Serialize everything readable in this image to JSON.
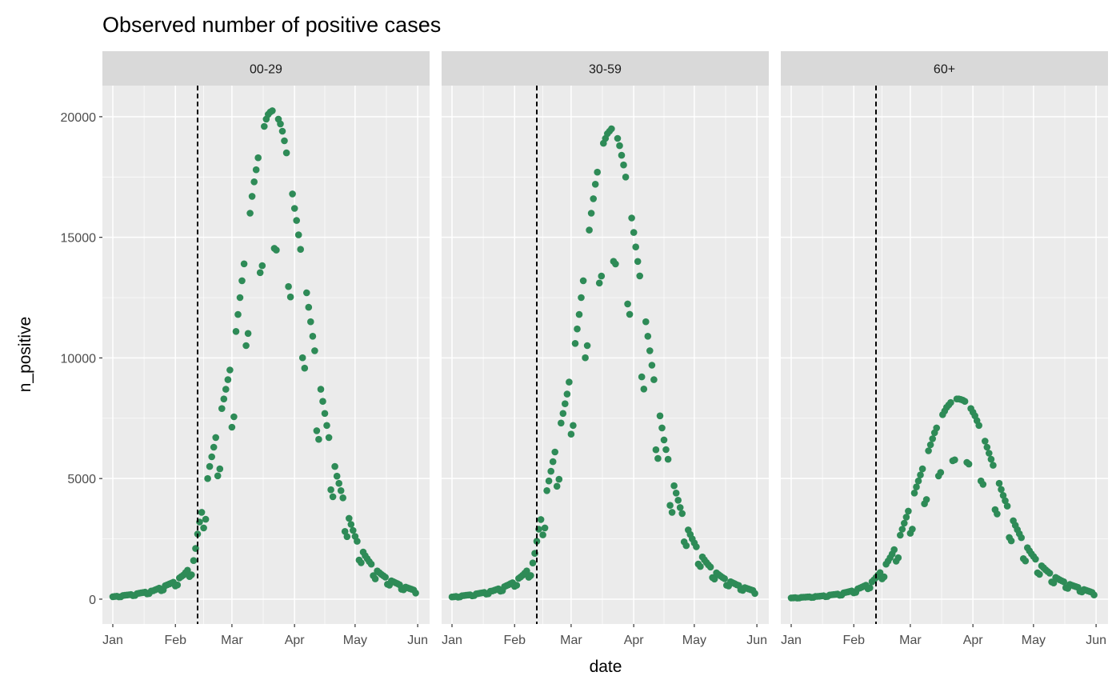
{
  "chart_data": {
    "type": "scatter",
    "title": "Observed number of positive cases",
    "xlabel": "date",
    "ylabel": "n_positive",
    "x_tick_labels": [
      "Jan",
      "Feb",
      "Mar",
      "Apr",
      "May",
      "Jun"
    ],
    "y_ticks": [
      0,
      5000,
      10000,
      15000,
      20000
    ],
    "ylim": [
      -1030,
      21290
    ],
    "grid": true,
    "point_color": "#2E8B57",
    "panel_background": "#EBEBEB",
    "strip_background": "#D9D9D9",
    "reference_line": {
      "x": "02-12",
      "style": "dashed",
      "color": "#000000"
    },
    "dates": [
      "01-01",
      "01-02",
      "01-03",
      "01-04",
      "01-05",
      "01-06",
      "01-07",
      "01-08",
      "01-09",
      "01-10",
      "01-11",
      "01-12",
      "01-13",
      "01-14",
      "01-15",
      "01-16",
      "01-17",
      "01-18",
      "01-19",
      "01-20",
      "01-21",
      "01-22",
      "01-23",
      "01-24",
      "01-25",
      "01-26",
      "01-27",
      "01-28",
      "01-29",
      "01-30",
      "01-31",
      "02-01",
      "02-02",
      "02-03",
      "02-04",
      "02-05",
      "02-06",
      "02-07",
      "02-08",
      "02-09",
      "02-10",
      "02-11",
      "02-12",
      "02-13",
      "02-14",
      "02-15",
      "02-16",
      "02-17",
      "02-18",
      "02-19",
      "02-20",
      "02-21",
      "02-22",
      "02-23",
      "02-24",
      "02-25",
      "02-26",
      "02-27",
      "02-28",
      "03-01",
      "03-02",
      "03-03",
      "03-04",
      "03-05",
      "03-06",
      "03-07",
      "03-08",
      "03-09",
      "03-10",
      "03-11",
      "03-12",
      "03-13",
      "03-14",
      "03-15",
      "03-16",
      "03-17",
      "03-18",
      "03-19",
      "03-20",
      "03-21",
      "03-22",
      "03-23",
      "03-24",
      "03-25",
      "03-26",
      "03-27",
      "03-28",
      "03-29",
      "03-30",
      "03-31",
      "04-01",
      "04-02",
      "04-03",
      "04-04",
      "04-05",
      "04-06",
      "04-07",
      "04-08",
      "04-09",
      "04-10",
      "04-11",
      "04-12",
      "04-13",
      "04-14",
      "04-15",
      "04-16",
      "04-17",
      "04-18",
      "04-19",
      "04-20",
      "04-21",
      "04-22",
      "04-23",
      "04-24",
      "04-25",
      "04-26",
      "04-27",
      "04-28",
      "04-29",
      "04-30",
      "05-01",
      "05-02",
      "05-03",
      "05-04",
      "05-05",
      "05-06",
      "05-07",
      "05-08",
      "05-09",
      "05-10",
      "05-11",
      "05-12",
      "05-13",
      "05-14",
      "05-15",
      "05-16",
      "05-17",
      "05-18",
      "05-19",
      "05-20",
      "05-21",
      "05-22",
      "05-23",
      "05-24",
      "05-25",
      "05-26",
      "05-27",
      "05-28",
      "05-29",
      "05-30",
      "05-31"
    ],
    "facets": [
      {
        "label": "00-29",
        "values": [
          100,
          110,
          120,
          94,
          101,
          150,
          160,
          170,
          180,
          190,
          144,
          155,
          230,
          245,
          260,
          275,
          290,
          220,
          230,
          335,
          350,
          385,
          420,
          455,
          353,
          378,
          560,
          595,
          630,
          665,
          700,
          547,
          590,
          880,
          940,
          1000,
          1100,
          1200,
          936,
          1008,
          1600,
          2100,
          2700,
          3200,
          3600,
          2952,
          3312,
          5000,
          5500,
          5900,
          6300,
          6700,
          5112,
          5400,
          7900,
          8300,
          8700,
          9100,
          9500,
          7128,
          7560,
          11100,
          11800,
          12500,
          13200,
          13900,
          10512,
          11016,
          16000,
          16700,
          17300,
          17800,
          18300,
          13536,
          13824,
          19600,
          19900,
          20100,
          20200,
          20250,
          14544,
          14472,
          19900,
          19700,
          19400,
          19000,
          18500,
          12960,
          12528,
          16800,
          16200,
          15700,
          15100,
          14500,
          10008,
          9576,
          12700,
          12100,
          11500,
          10900,
          10300,
          6984,
          6624,
          8700,
          8200,
          7700,
          7200,
          6700,
          4536,
          4248,
          5500,
          5100,
          4800,
          4500,
          4200,
          2808,
          2592,
          3350,
          3100,
          2850,
          2600,
          2400,
          1620,
          1512,
          1950,
          1800,
          1680,
          1560,
          1450,
          972,
          842,
          1170,
          1100,
          1030,
          970,
          910,
          619,
          583,
          760,
          720,
          680,
          640,
          600,
          410,
          389,
          500,
          470,
          440,
          410,
          380,
          252
        ]
      },
      {
        "label": "30-59",
        "values": [
          90,
          100,
          110,
          86,
          94,
          140,
          150,
          160,
          170,
          180,
          137,
          148,
          220,
          235,
          250,
          265,
          280,
          212,
          223,
          325,
          340,
          370,
          400,
          430,
          331,
          353,
          520,
          560,
          600,
          640,
          680,
          533,
          576,
          860,
          920,
          990,
          1080,
          1170,
          907,
          979,
          1500,
          1900,
          2400,
          2900,
          3300,
          2664,
          2952,
          4500,
          4900,
          5300,
          5700,
          6100,
          4680,
          4968,
          7300,
          7700,
          8100,
          8500,
          9000,
          6840,
          7200,
          10600,
          11200,
          11800,
          12500,
          13200,
          10008,
          10512,
          15300,
          16000,
          16600,
          17200,
          17700,
          13104,
          13392,
          18900,
          19100,
          19300,
          19400,
          19500,
          14004,
          13896,
          19100,
          18800,
          18400,
          18000,
          17500,
          12240,
          11808,
          15800,
          15200,
          14600,
          14000,
          13400,
          9216,
          8712,
          11500,
          10900,
          10300,
          9700,
          9100,
          6192,
          5832,
          7600,
          7100,
          6600,
          6200,
          5800,
          3888,
          3600,
          4700,
          4400,
          4100,
          3800,
          3550,
          2376,
          2218,
          2870,
          2680,
          2500,
          2330,
          2170,
          1454,
          1354,
          1750,
          1630,
          1520,
          1420,
          1330,
          893,
          835,
          1090,
          1020,
          960,
          900,
          850,
          576,
          547,
          720,
          680,
          640,
          600,
          570,
          389,
          367,
          480,
          450,
          420,
          390,
          360,
          238
        ]
      },
      {
        "label": "60+",
        "values": [
          50,
          55,
          60,
          46,
          49,
          75,
          80,
          85,
          90,
          95,
          70,
          74,
          110,
          115,
          120,
          130,
          140,
          105,
          112,
          170,
          180,
          190,
          200,
          215,
          161,
          172,
          260,
          280,
          300,
          320,
          340,
          259,
          280,
          430,
          460,
          500,
          540,
          580,
          434,
          469,
          720,
          800,
          900,
          1000,
          1100,
          840,
          924,
          1450,
          1580,
          1720,
          1870,
          2050,
          1575,
          1715,
          2650,
          2900,
          3150,
          3400,
          3650,
          2730,
          2905,
          4400,
          4650,
          4900,
          5150,
          5400,
          3955,
          4130,
          6150,
          6400,
          6650,
          6900,
          7100,
          5110,
          5250,
          7650,
          7800,
          7950,
          8050,
          8150,
          5740,
          5775,
          8300,
          8300,
          8280,
          8250,
          8200,
          5670,
          5600,
          7900,
          7750,
          7600,
          7400,
          7200,
          4900,
          4760,
          6550,
          6300,
          6050,
          5800,
          5550,
          3710,
          3535,
          4800,
          4550,
          4300,
          4080,
          3860,
          2555,
          2415,
          3250,
          3060,
          2880,
          2710,
          2550,
          1680,
          1582,
          2130,
          2000,
          1880,
          1770,
          1660,
          1092,
          1029,
          1380,
          1300,
          1220,
          1150,
          1080,
          714,
          672,
          900,
          850,
          800,
          760,
          720,
          476,
          448,
          610,
          580,
          550,
          520,
          490,
          322,
          301,
          400,
          370,
          340,
          310,
          280,
          175
        ]
      }
    ]
  }
}
